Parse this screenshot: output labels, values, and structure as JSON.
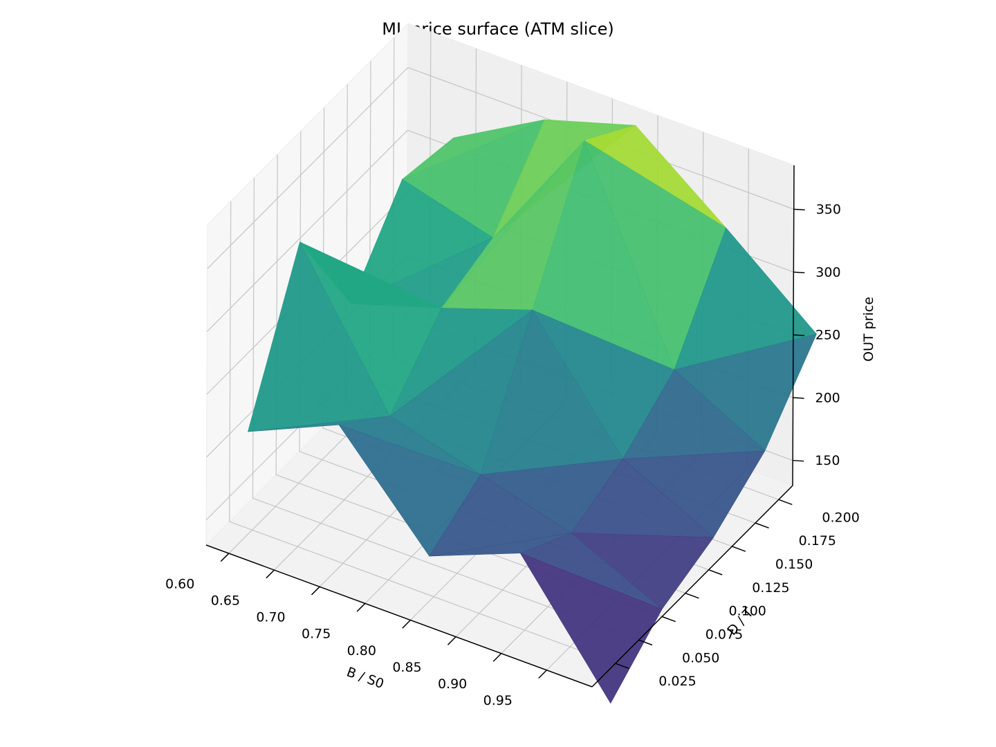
{
  "chart_data": {
    "type": "surface3d",
    "title": "ML price surface (ATM slice)",
    "xlabel": "B / S0",
    "ylabel": "D / T",
    "zlabel": "OUT price",
    "x_ticks": [
      "0.60",
      "0.65",
      "0.70",
      "0.75",
      "0.80",
      "0.85",
      "0.90",
      "0.95"
    ],
    "y_ticks": [
      "0.025",
      "0.050",
      "0.075",
      "0.100",
      "0.125",
      "0.150",
      "0.175",
      "0.200"
    ],
    "z_ticks": [
      "150",
      "200",
      "250",
      "300",
      "350"
    ],
    "x": [
      0.6,
      0.7,
      0.8,
      0.9,
      1.0
    ],
    "y": [
      0.02,
      0.075,
      0.13,
      0.185,
      0.24
    ],
    "z": [
      [
        212,
        322,
        232,
        290,
        282
      ],
      [
        244,
        210,
        255,
        270,
        323
      ],
      [
        166,
        190,
        280,
        374,
        345
      ],
      [
        195,
        170,
        188,
        218,
        290
      ],
      [
        102,
        136,
        152,
        180,
        232
      ]
    ],
    "xlim": [
      0.575,
      1.0
    ],
    "ylim": [
      0.0,
      0.215
    ],
    "zlim": [
      130,
      385
    ],
    "colormap": "viridis",
    "grid": true
  }
}
